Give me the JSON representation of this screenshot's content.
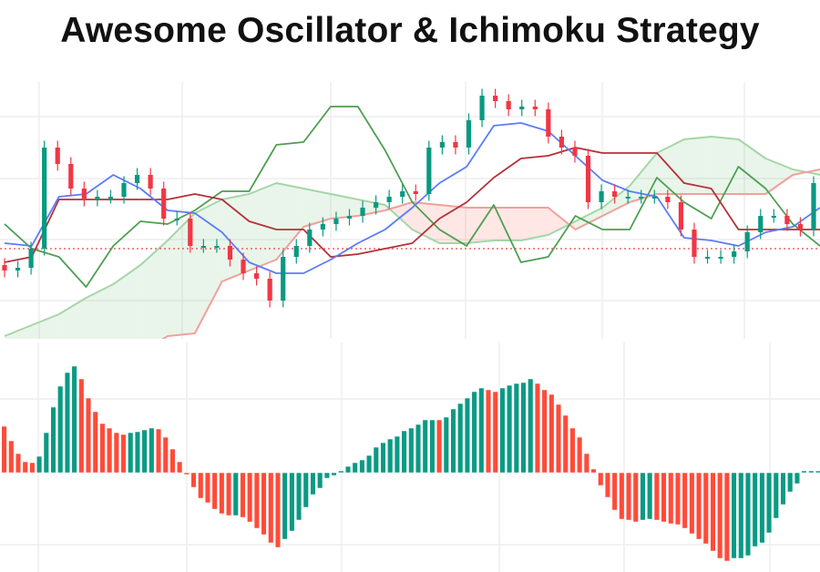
{
  "title": "Awesome Oscillator & Ichimoku Strategy",
  "colors": {
    "candle_up": "#089981",
    "candle_down": "#f23645",
    "ao_up": "#0a9a84",
    "ao_down": "#ff4b3a",
    "tenkan": "#5b7cfa",
    "kijun": "#b5313a",
    "chikou": "#4e9f50",
    "span_a": "#a5d6a7",
    "span_b": "#f2a09a",
    "cloud_bull": "rgba(76,175,80,0.12)",
    "cloud_bear": "rgba(244,67,54,0.13)",
    "reference_line": "#ee4444",
    "grid": "#eeeeee"
  },
  "chart_data": [
    {
      "type": "candlestick",
      "indicator": "ichimoku",
      "grid": true,
      "ylim": [
        3,
        97
      ],
      "reference_level": 36,
      "closes": [
        28,
        29,
        36,
        73,
        67,
        58,
        54,
        55,
        55,
        60,
        63,
        58,
        47,
        47,
        37,
        37,
        37,
        32,
        27,
        25,
        17,
        33,
        37,
        43,
        45,
        47,
        48,
        51,
        53,
        55,
        57,
        56,
        73,
        75,
        73,
        83,
        92,
        90,
        87,
        88,
        87,
        77,
        73,
        70,
        53,
        57,
        55,
        55,
        55,
        55,
        53,
        43,
        33,
        33,
        33,
        35,
        42,
        48,
        48,
        45,
        43,
        60
      ],
      "tenkan": [
        38,
        37,
        55,
        56,
        63,
        58,
        50,
        49,
        42,
        31,
        27,
        27,
        32,
        38,
        43,
        51,
        60,
        66,
        81,
        82,
        79,
        70,
        61,
        57,
        55,
        40,
        39,
        37,
        42,
        44,
        51
      ],
      "kijun": [
        31,
        33,
        54,
        54,
        54,
        54,
        54,
        56,
        54,
        46,
        43,
        43,
        33,
        34,
        36,
        38,
        47,
        53,
        62,
        69,
        70,
        73,
        71,
        71,
        71,
        60,
        58,
        43,
        43,
        43,
        43
      ],
      "chikou": [
        45,
        36,
        33,
        22,
        37,
        46,
        45,
        50,
        57,
        57,
        74,
        75,
        88,
        88,
        72,
        53,
        43,
        37,
        52,
        31,
        33,
        48,
        43,
        43,
        62,
        53,
        47,
        66,
        58,
        45,
        37
      ],
      "span_a": [
        4,
        8,
        12,
        18,
        23,
        30,
        39,
        49,
        54,
        56,
        60,
        58,
        56,
        54,
        52,
        43,
        38,
        38,
        39,
        39,
        41,
        46,
        51,
        59,
        71,
        76,
        77,
        76,
        69,
        65,
        63
      ],
      "span_b": [
        -13,
        -12,
        -10,
        -8,
        -7,
        -2,
        4,
        5,
        24,
        28,
        32,
        44,
        47,
        48,
        50,
        53,
        52,
        51,
        51,
        51,
        51,
        43,
        48,
        53,
        56,
        56,
        56,
        56,
        56,
        63,
        65
      ]
    },
    {
      "type": "bar",
      "indicator": "awesome_oscillator",
      "grid": true,
      "ylim": [
        -100,
        120
      ],
      "values": [
        51,
        35,
        21,
        12,
        11,
        18,
        44,
        72,
        95,
        110,
        117,
        103,
        82,
        67,
        54,
        49,
        44,
        42,
        44,
        45,
        47,
        49,
        48,
        39,
        26,
        12,
        -2,
        -16,
        -28,
        -33,
        -40,
        -45,
        -47,
        -47,
        -49,
        -54,
        -61,
        -68,
        -77,
        -82,
        -73,
        -64,
        -52,
        -38,
        -24,
        -17,
        -6,
        -3,
        2,
        7,
        11,
        14,
        19,
        28,
        33,
        37,
        40,
        46,
        49,
        53,
        58,
        58,
        58,
        61,
        70,
        76,
        82,
        89,
        93,
        91,
        89,
        93,
        96,
        98,
        99,
        103,
        98,
        91,
        86,
        75,
        63,
        49,
        39,
        21,
        4,
        -14,
        -27,
        -41,
        -51,
        -52,
        -54,
        -52,
        -51,
        -52,
        -54,
        -56,
        -57,
        -61,
        -67,
        -73,
        -78,
        -86,
        -94,
        -97,
        -94,
        -94,
        -91,
        -81,
        -77,
        -66,
        -50,
        -35,
        -21,
        -12,
        2,
        2,
        2
      ],
      "bar_colors": "RRRRRGGGGGGRRRRRRRGGGGRRRRRRRRRRRGRRRRRRGGGGGGGGGGGGGGGGGGGGGGRGGGGGGRRGGGGGRRRRRRRRRRRRRRRGGRRRRRRRRRRRGGGGGGGGGGGGG"
    }
  ]
}
